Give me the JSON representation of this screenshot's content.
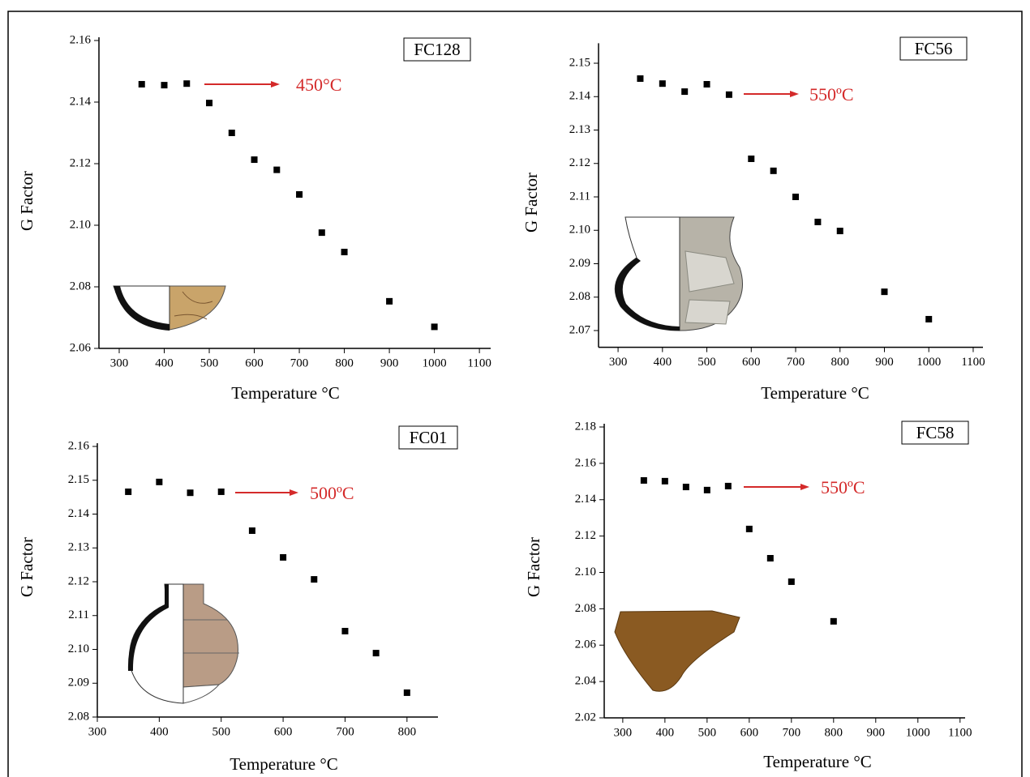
{
  "chart_data": [
    {
      "type": "scatter",
      "title": "FC128",
      "annotation": "450°C",
      "annotation_color": "#d42a2a",
      "marker_color": "#000000",
      "xlabel": "Temperature °C",
      "ylabel": "G Factor",
      "x": [
        350,
        400,
        450,
        500,
        550,
        600,
        650,
        700,
        750,
        800,
        900,
        1000
      ],
      "values": [
        2.1458,
        2.1455,
        2.146,
        2.1397,
        2.13,
        2.1213,
        2.118,
        2.11,
        2.0976,
        2.0913,
        2.0753,
        2.067
      ],
      "xlim": [
        255,
        1125
      ],
      "ylim": [
        2.06,
        2.16
      ],
      "xticks": [
        300,
        400,
        500,
        600,
        700,
        800,
        900,
        1000,
        1100
      ],
      "yticks": [
        2.06,
        2.08,
        {
          "value": 2.1,
          "label": "2.10"
        },
        2.12,
        2.14,
        2.16
      ]
    },
    {
      "type": "scatter",
      "title": "FC56",
      "annotation": "550ºC",
      "annotation_color": "#d42a2a",
      "marker_color": "#000000",
      "xlabel": "Temperature °C",
      "ylabel": "G Factor",
      "x": [
        350,
        400,
        450,
        500,
        550,
        600,
        650,
        700,
        750,
        800,
        900,
        1000
      ],
      "values": [
        2.1454,
        2.1439,
        2.1415,
        2.1437,
        2.1406,
        2.1214,
        2.1178,
        2.11,
        2.1025,
        2.0998,
        2.0816,
        2.0734
      ],
      "xlim": [
        256,
        1122
      ],
      "ylim": [
        2.065,
        2.155
      ],
      "xticks": [
        300,
        400,
        500,
        600,
        700,
        800,
        900,
        1000,
        1100
      ],
      "yticks": [
        2.07,
        2.08,
        2.09,
        {
          "value": 2.1,
          "label": "2.10"
        },
        2.11,
        2.12,
        2.13,
        2.14,
        2.15
      ]
    },
    {
      "type": "scatter",
      "title": "FC01",
      "annotation": "500ºC",
      "annotation_color": "#d42a2a",
      "marker_color": "#000000",
      "xlabel": "Temperature °C",
      "ylabel": "G Factor",
      "x": [
        350,
        400,
        450,
        500,
        550,
        600,
        650,
        700,
        750,
        800
      ],
      "values": [
        2.1466,
        2.1495,
        2.1463,
        2.1466,
        2.1351,
        2.1272,
        2.1207,
        2.1054,
        2.0989,
        2.0872
      ],
      "xlim": [
        300,
        850
      ],
      "ylim": [
        2.08,
        2.16
      ],
      "xticks": [
        300,
        400,
        500,
        600,
        700,
        800
      ],
      "yticks": [
        2.08,
        2.09,
        {
          "value": 2.1,
          "label": "2.10"
        },
        2.11,
        2.12,
        2.13,
        2.14,
        2.15,
        2.16
      ]
    },
    {
      "type": "scatter",
      "title": "FC58",
      "annotation": "550ºC",
      "annotation_color": "#d42a2a",
      "marker_color": "#000000",
      "xlabel": "Temperature °C",
      "ylabel": "G Factor",
      "x": [
        350,
        400,
        450,
        500,
        550,
        600,
        650,
        700,
        800
      ],
      "values": [
        2.1506,
        2.1502,
        2.147,
        2.1453,
        2.1475,
        2.1239,
        2.1078,
        2.0949,
        2.0731
      ],
      "xlim": [
        256,
        1112
      ],
      "ylim": [
        2.02,
        2.18
      ],
      "xticks": [
        300,
        400,
        500,
        600,
        700,
        800,
        900,
        1000,
        1100
      ],
      "yticks": [
        2.02,
        2.04,
        2.06,
        2.08,
        {
          "value": 2.1,
          "label": "2.10"
        },
        2.12,
        2.14,
        2.16,
        2.18
      ]
    }
  ]
}
